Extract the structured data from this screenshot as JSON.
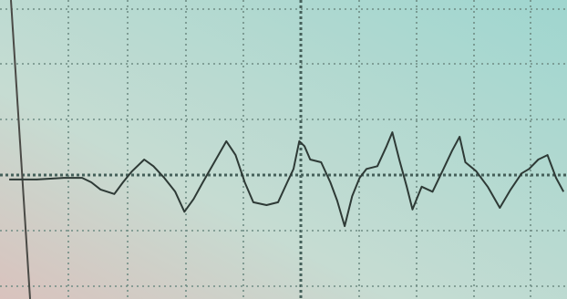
{
  "chart_data": {
    "type": "line",
    "color": "#2e3a36",
    "xlim": [
      -5.24,
      4.63
    ],
    "ylim": [
      -2.23,
      3.15
    ],
    "x": [
      -5.08,
      -4.6,
      -4.13,
      -3.81,
      -3.65,
      -3.49,
      -3.25,
      -3.1,
      -2.94,
      -2.73,
      -2.57,
      -2.38,
      -2.19,
      -2.03,
      -1.87,
      -1.71,
      -1.51,
      -1.3,
      -1.14,
      -0.98,
      -0.83,
      -0.6,
      -0.4,
      -0.24,
      -0.13,
      -0.03,
      0.06,
      0.16,
      0.35,
      0.51,
      0.63,
      0.76,
      0.89,
      1.02,
      1.14,
      1.33,
      1.49,
      1.59,
      1.71,
      1.84,
      1.94,
      2.1,
      2.29,
      2.48,
      2.63,
      2.76,
      2.86,
      3.05,
      3.25,
      3.46,
      3.65,
      3.84,
      3.97,
      4.13,
      4.29,
      4.44,
      4.57
    ],
    "values": [
      -0.08,
      -0.08,
      -0.05,
      -0.05,
      -0.13,
      -0.26,
      -0.34,
      -0.13,
      0.07,
      0.28,
      0.16,
      -0.05,
      -0.3,
      -0.66,
      -0.43,
      -0.13,
      0.23,
      0.61,
      0.36,
      -0.13,
      -0.49,
      -0.54,
      -0.49,
      -0.13,
      0.11,
      0.61,
      0.52,
      0.28,
      0.23,
      -0.13,
      -0.46,
      -0.92,
      -0.38,
      -0.05,
      0.11,
      0.16,
      0.52,
      0.77,
      0.28,
      -0.21,
      -0.62,
      -0.21,
      -0.3,
      0.11,
      0.44,
      0.69,
      0.23,
      0.07,
      -0.21,
      -0.59,
      -0.26,
      0.03,
      0.11,
      0.28,
      0.36,
      -0.05,
      -0.3
    ]
  }
}
